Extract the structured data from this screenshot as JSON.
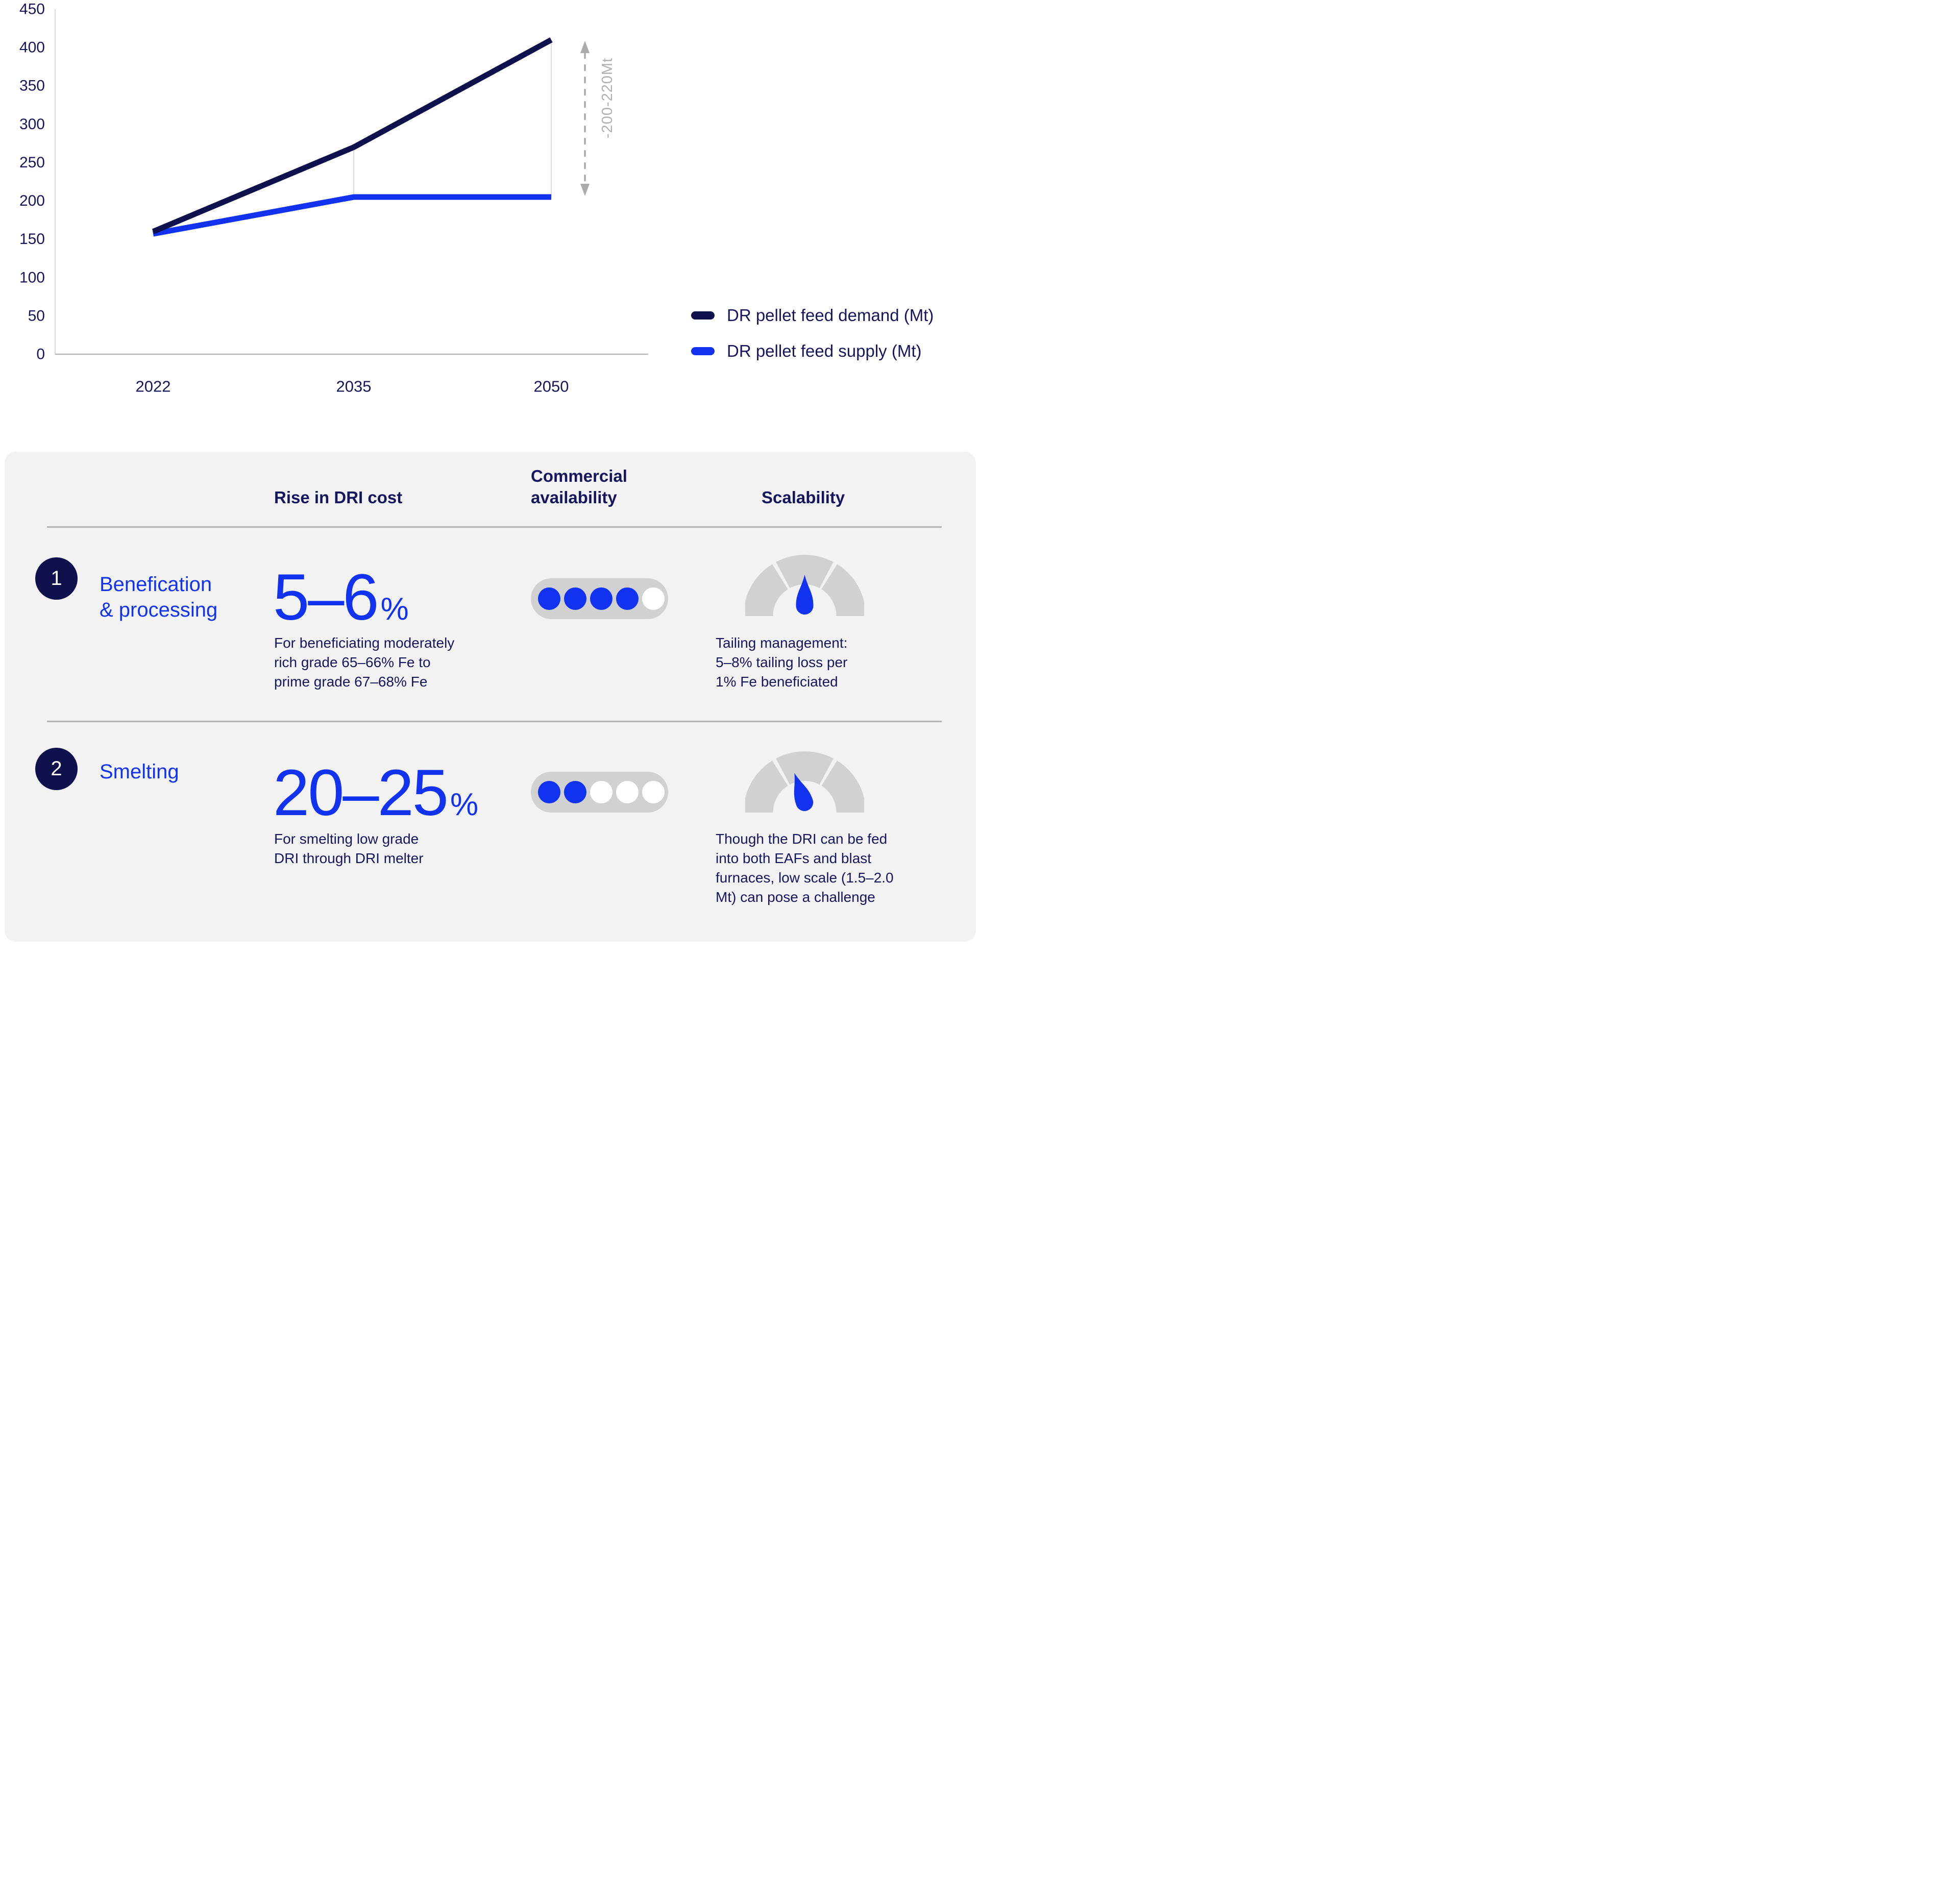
{
  "colors": {
    "navy": "#10104d",
    "navy_text": "#16165e",
    "blue": "#1133f0",
    "panel_gray": "#f2f2f3",
    "control_gray": "#d1d1d2",
    "divider_gray": "#b3b3b3",
    "annotation_gray": "#ababab",
    "axis_gray": "#c9c9c9"
  },
  "chart_data": {
    "type": "line",
    "categories": [
      "2022",
      "2035",
      "2050"
    ],
    "series": [
      {
        "name": "DR pellet feed demand (Mt)",
        "values": [
          160,
          270,
          410
        ],
        "color": "#10104d"
      },
      {
        "name": "DR pellet feed supply (Mt)",
        "values": [
          157,
          205,
          205
        ],
        "color": "#1133f0"
      }
    ],
    "ylim": [
      0,
      450
    ],
    "ytick_step": 50,
    "xlabel": "",
    "ylabel": "",
    "grid": false,
    "legend_position": "bottom-right",
    "connectors_at_category_indices": [
      1,
      2
    ],
    "gap_annotation": {
      "label": "-200-220Mt",
      "at_category_index": 2,
      "between_series": [
        0,
        1
      ]
    }
  },
  "table": {
    "headers": {
      "rise": "Rise in DRI cost",
      "availability": "Commercial\navailability",
      "scalability": "Scalability"
    },
    "rows": [
      {
        "number": "1",
        "label": "Benefication\n& processing",
        "rise_value": "5–6",
        "rise_unit": "%",
        "rise_description": "For beneficiating moderately\nrich grade 65–66% Fe to\nprime grade 67–68% Fe",
        "availability": {
          "filled": 4,
          "total": 5
        },
        "scalability": {
          "needle_angle_deg": 0,
          "description": "Tailing management:\n5–8% tailing loss per\n1% Fe beneficiated"
        }
      },
      {
        "number": "2",
        "label": "Smelting",
        "rise_value": "20–25",
        "rise_unit": "%",
        "rise_description": "For smelting low grade\nDRI through DRI melter",
        "availability": {
          "filled": 2,
          "total": 5
        },
        "scalability": {
          "needle_angle_deg": -19,
          "description": "Though the DRI can be fed\ninto both EAFs and blast\nfurnaces, low scale (1.5–2.0\nMt) can pose a challenge"
        }
      }
    ]
  }
}
